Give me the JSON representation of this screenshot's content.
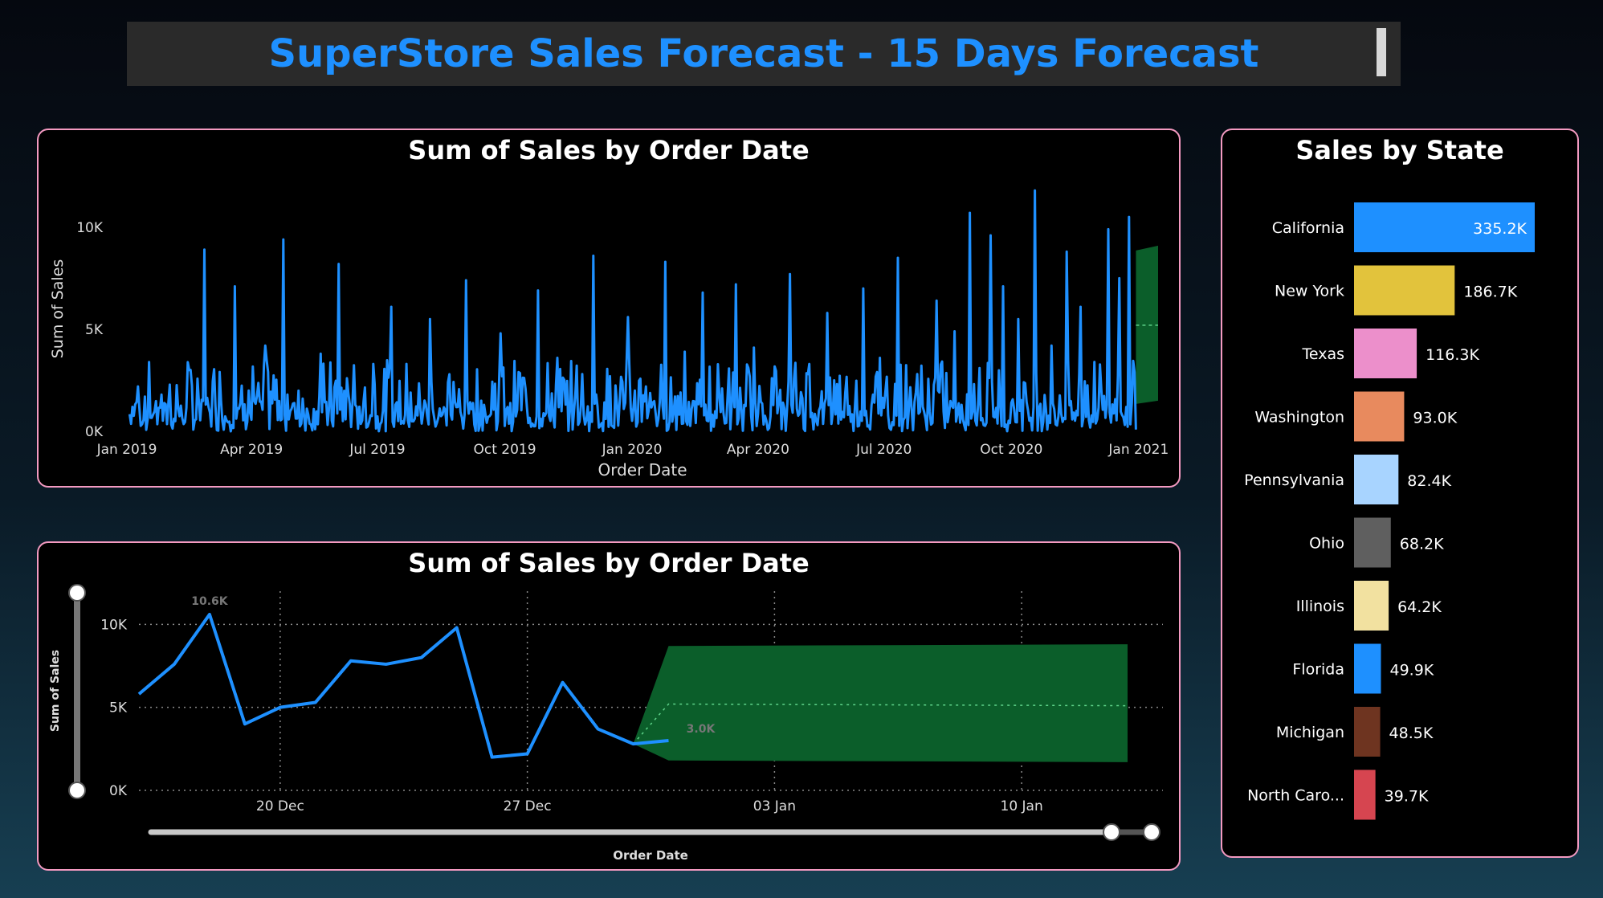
{
  "header": {
    "title": "SuperStore Sales Forecast - 15 Days Forecast"
  },
  "colors": {
    "accent": "#1e90ff",
    "panel_border": "#f49ac1",
    "forecast_band": "#0b5e2a",
    "forecast_line": "#5fd48a"
  },
  "chart_data": [
    {
      "type": "line",
      "title": "Sum of Sales by Order Date",
      "xlabel": "Order Date",
      "ylabel": "Sum of Sales",
      "x_range": [
        "2019-01-01",
        "2021-01-15"
      ],
      "ylim": [
        0,
        12000
      ],
      "yticks": [
        0,
        5000,
        10000
      ],
      "ytick_labels": [
        "0K",
        "5K",
        "10K"
      ],
      "xtick_labels": [
        "Jan 2019",
        "Apr 2019",
        "Jul 2019",
        "Oct 2019",
        "Jan 2020",
        "Apr 2020",
        "Jul 2020",
        "Oct 2020",
        "Jan 2021"
      ],
      "xtick_dates": [
        "2019-01-01",
        "2019-04-01",
        "2019-07-01",
        "2019-10-01",
        "2020-01-01",
        "2020-04-01",
        "2020-07-01",
        "2020-10-01",
        "2021-01-01"
      ],
      "series": [
        {
          "values_note": "daily",
          "x": [
            "2019-01-03",
            "2019-01-07",
            "2019-01-12",
            "2019-01-20",
            "2019-02-01",
            "2019-02-10",
            "2019-02-20",
            "2019-03-05",
            "2019-03-15",
            "2019-03-25",
            "2019-04-05",
            "2019-04-18",
            "2019-05-01",
            "2019-05-15",
            "2019-05-28",
            "2019-06-10",
            "2019-06-22",
            "2019-07-05",
            "2019-07-18",
            "2019-08-01",
            "2019-08-15",
            "2019-08-28",
            "2019-09-10",
            "2019-09-22",
            "2019-10-05",
            "2019-10-18",
            "2019-11-01",
            "2019-11-15",
            "2019-11-28",
            "2019-12-10",
            "2019-12-22",
            "2020-01-05",
            "2020-01-18",
            "2020-02-01",
            "2020-02-15",
            "2020-02-28",
            "2020-03-10",
            "2020-03-22",
            "2020-04-05",
            "2020-04-18",
            "2020-05-01",
            "2020-05-15",
            "2020-05-28",
            "2020-06-10",
            "2020-06-22",
            "2020-07-05",
            "2020-07-18",
            "2020-08-01",
            "2020-08-15",
            "2020-08-28",
            "2020-09-05",
            "2020-09-12",
            "2020-09-20",
            "2020-10-01",
            "2020-10-12",
            "2020-10-25",
            "2020-11-05",
            "2020-11-15",
            "2020-11-25",
            "2020-12-05",
            "2020-12-15",
            "2020-12-22",
            "2020-12-28"
          ],
          "y": [
            1200,
            2200,
            600,
            1800,
            500,
            3000,
            8900,
            1500,
            7100,
            2000,
            4200,
            9400,
            1600,
            3800,
            8200,
            1200,
            3300,
            6100,
            1900,
            5500,
            2400,
            7400,
            1300,
            4800,
            2900,
            6900,
            3600,
            1800,
            8600,
            2700,
            5600,
            2200,
            8300,
            3900,
            6800,
            1700,
            7200,
            4100,
            2600,
            7700,
            3300,
            5800,
            1900,
            7000,
            3600,
            8500,
            2800,
            6400,
            4900,
            10700,
            3100,
            9600,
            7100,
            5500,
            11800,
            4200,
            8800,
            6100,
            3400,
            9900,
            7500,
            10500,
            2900
          ]
        }
      ],
      "forecast": {
        "start": "2020-12-30",
        "end": "2021-01-15",
        "lower": 1500,
        "upper": 8700,
        "mid": 5200
      }
    },
    {
      "type": "line",
      "title": "Sum of Sales by Order Date",
      "xlabel": "Order Date",
      "ylabel": "Sum of Sales",
      "ylim": [
        0,
        12000
      ],
      "yticks": [
        0,
        5000,
        10000
      ],
      "ytick_labels": [
        "0K",
        "5K",
        "10K"
      ],
      "xtick_labels": [
        "20 Dec",
        "27 Dec",
        "03 Jan",
        "10 Jan"
      ],
      "xtick_days": [
        0,
        7,
        14,
        21
      ],
      "series": [
        {
          "x_days_from_20_Dec": [
            -4,
            -3,
            -2,
            -1,
            0,
            1,
            2,
            3,
            4,
            5,
            6,
            7,
            8,
            9,
            10,
            11
          ],
          "y": [
            5800,
            7600,
            10600,
            4000,
            5000,
            5300,
            7800,
            7600,
            8000,
            9800,
            2000,
            2200,
            6500,
            3700,
            2800,
            3000
          ]
        }
      ],
      "annotations": [
        {
          "text": "10.6K",
          "x_day": -2,
          "y": 10600
        },
        {
          "text": "3.0K",
          "x_day": 11,
          "y": 3000
        }
      ],
      "forecast": {
        "x_days": [
          10,
          11,
          24
        ],
        "upper": [
          2800,
          8700,
          8800
        ],
        "lower": [
          2800,
          1800,
          1700
        ],
        "mid": [
          2800,
          5200,
          5100
        ]
      }
    },
    {
      "type": "bar",
      "orientation": "horizontal",
      "title": "Sales by State",
      "categories": [
        "California",
        "New York",
        "Texas",
        "Washington",
        "Pennsylvania",
        "Ohio",
        "Illinois",
        "Florida",
        "Michigan",
        "North Caro..."
      ],
      "values": [
        335200,
        186700,
        116300,
        93000,
        82400,
        68200,
        64200,
        49900,
        48500,
        39700
      ],
      "value_labels": [
        "335.2K",
        "186.7K",
        "116.3K",
        "93.0K",
        "82.4K",
        "68.2K",
        "64.2K",
        "49.9K",
        "48.5K",
        "39.7K"
      ],
      "colors": [
        "#1e90ff",
        "#e2c33c",
        "#ec8fcb",
        "#e88a5e",
        "#a8d4ff",
        "#5f5f5f",
        "#f2e1a0",
        "#1e90ff",
        "#6e3420",
        "#d64550"
      ]
    }
  ]
}
